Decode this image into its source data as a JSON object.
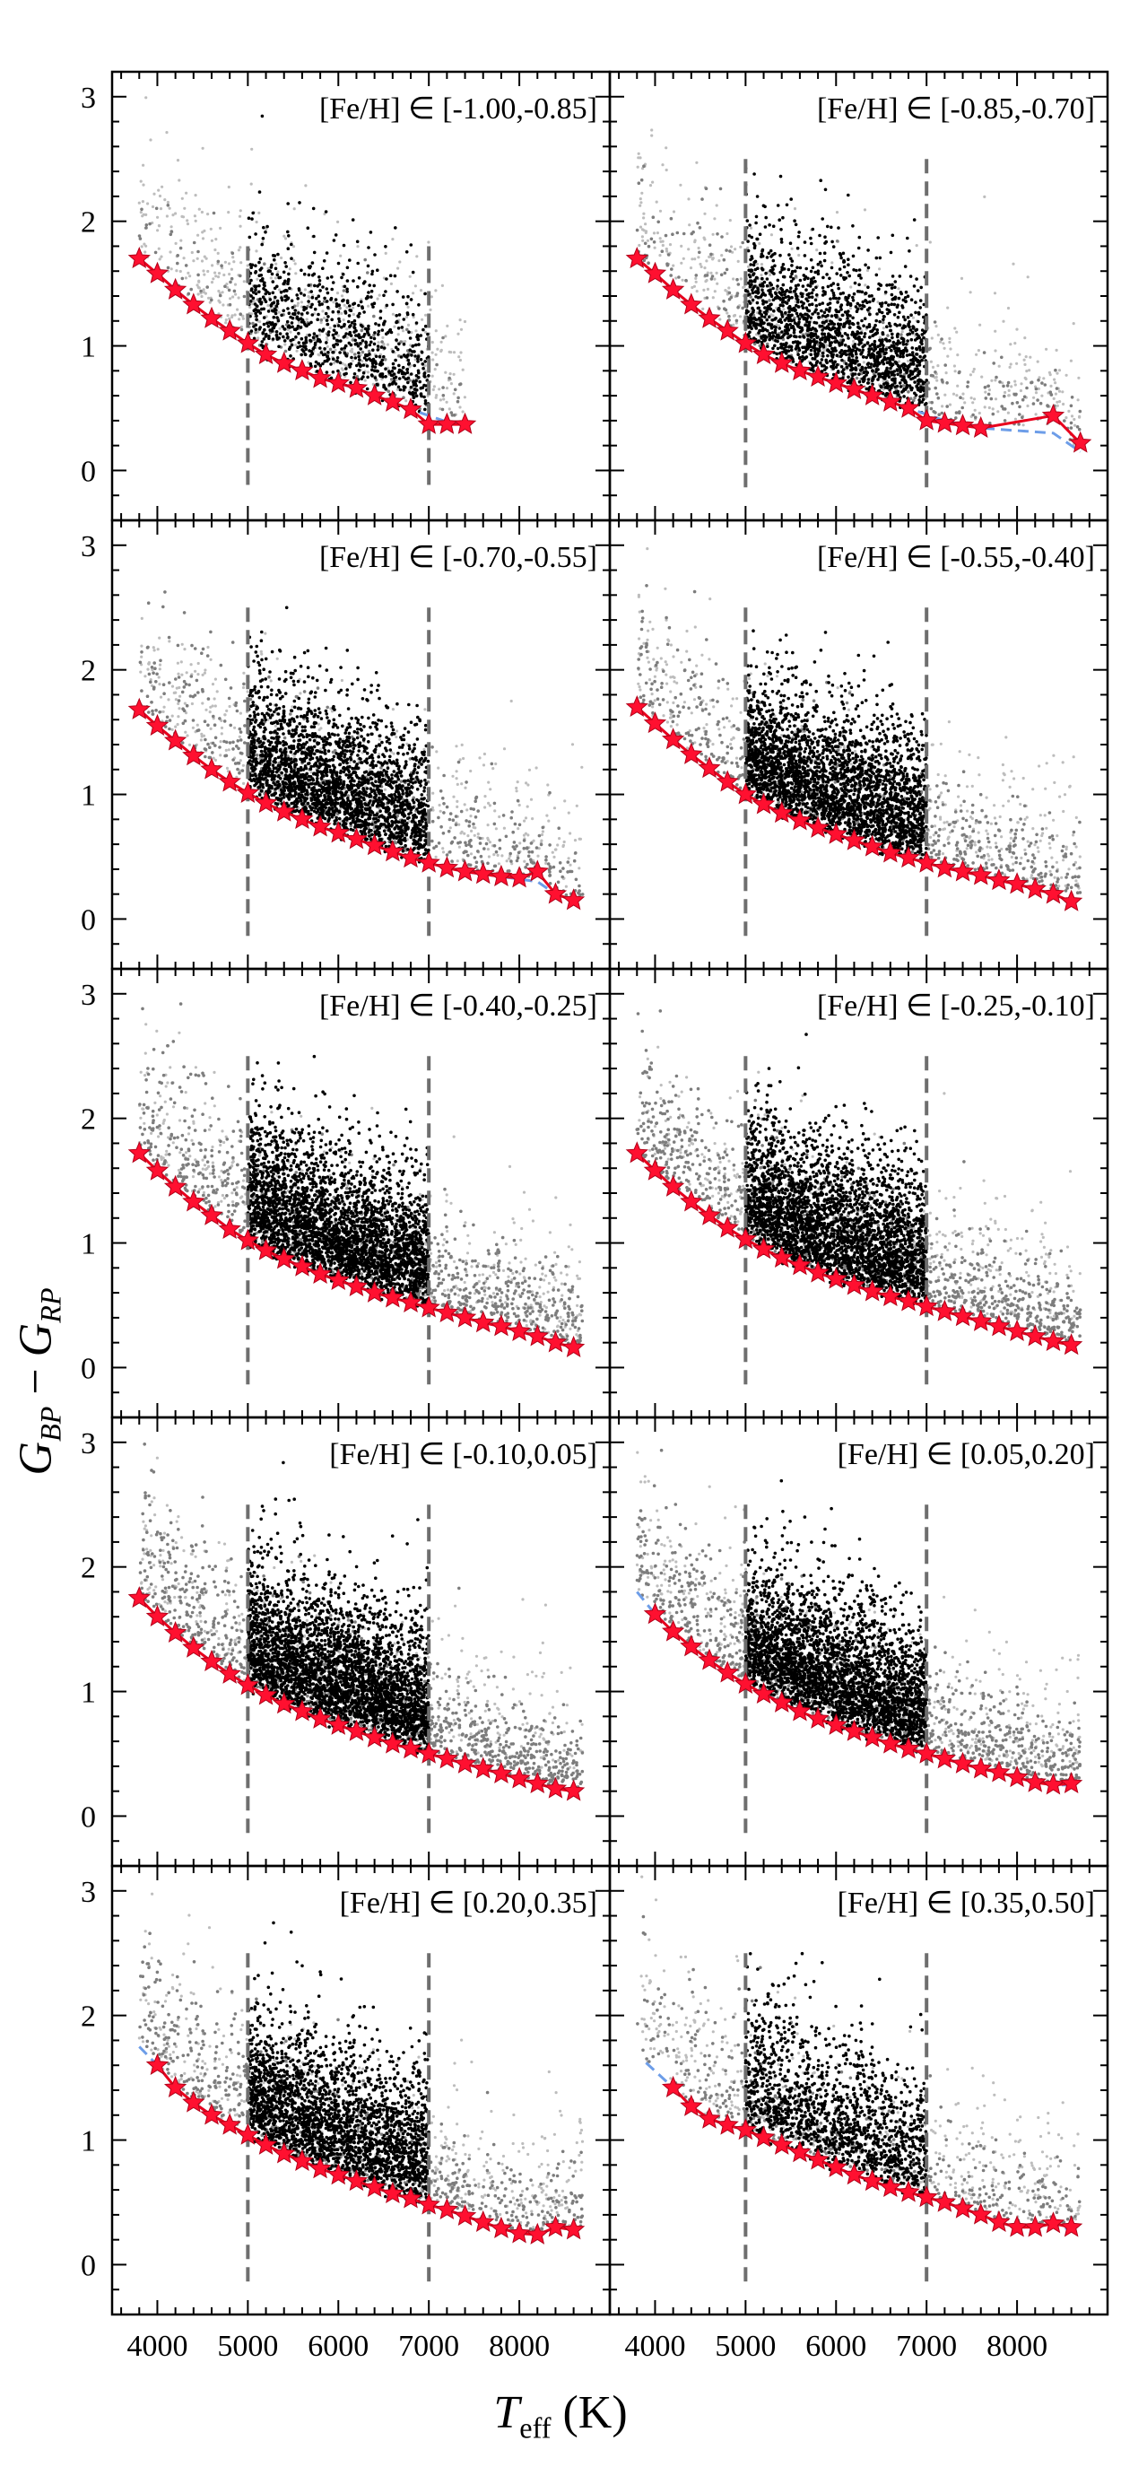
{
  "figure": {
    "ylabel_main": "G",
    "ylabel_sub1": "BP",
    "ylabel_minus": " − ",
    "ylabel_sub2": "RP",
    "xlabel_var": "T",
    "xlabel_sub": "eff",
    "xlabel_unit": " (K)"
  },
  "chart_data": [
    {
      "type": "scatter",
      "title": "[Fe/H] ∈ [-1.00,-0.85]",
      "xlim": [
        3500,
        9000
      ],
      "ylim": [
        -0.4,
        3.2
      ],
      "xticks": [
        4000,
        5000,
        6000,
        7000,
        8000
      ],
      "yticks": [
        0,
        1,
        2,
        3
      ],
      "cut_lines": [
        5000,
        7000
      ],
      "cut_line_ymax": 1.8,
      "density": {
        "black": 0.9,
        "gray": 0.2
      },
      "gray_xmax": 7400,
      "fit_x": [
        3800,
        4000,
        4200,
        4400,
        4600,
        4800,
        5000,
        5200,
        5400,
        5600,
        5800,
        6000,
        6200,
        6400,
        6600,
        6800,
        7000,
        7200,
        7400
      ],
      "fit_y": [
        1.7,
        1.58,
        1.45,
        1.33,
        1.22,
        1.12,
        1.02,
        0.93,
        0.86,
        0.8,
        0.74,
        0.7,
        0.66,
        0.6,
        0.55,
        0.49,
        0.44,
        0.39,
        0.37
      ],
      "stars_x": [
        3800,
        4000,
        4200,
        4400,
        4600,
        4800,
        5000,
        5200,
        5400,
        5600,
        5800,
        6000,
        6200,
        6400,
        6600,
        6800,
        7000,
        7200,
        7400
      ],
      "stars_y": [
        1.7,
        1.58,
        1.45,
        1.33,
        1.22,
        1.12,
        1.02,
        0.93,
        0.86,
        0.8,
        0.74,
        0.7,
        0.66,
        0.6,
        0.55,
        0.49,
        0.37,
        0.37,
        0.37
      ]
    },
    {
      "type": "scatter",
      "title": "[Fe/H] ∈ [-0.85,-0.70]",
      "xlim": [
        3500,
        9000
      ],
      "ylim": [
        -0.4,
        3.2
      ],
      "xticks": [
        4000,
        5000,
        6000,
        7000,
        8000
      ],
      "yticks": [
        0,
        1,
        2,
        3
      ],
      "cut_lines": [
        5000,
        7000
      ],
      "cut_line_ymax": 2.5,
      "density": {
        "black": 1.8,
        "gray": 0.4
      },
      "gray_xmax": 8700,
      "fit_x": [
        3800,
        4000,
        4200,
        4400,
        4600,
        4800,
        5000,
        5200,
        5400,
        5600,
        5800,
        6000,
        6200,
        6400,
        6600,
        6800,
        7000,
        7200,
        7400,
        7600,
        8400,
        8700
      ],
      "fit_y": [
        1.7,
        1.58,
        1.45,
        1.33,
        1.22,
        1.12,
        1.02,
        0.93,
        0.86,
        0.8,
        0.75,
        0.7,
        0.65,
        0.6,
        0.55,
        0.5,
        0.45,
        0.4,
        0.37,
        0.34,
        0.3,
        0.15
      ],
      "stars_x": [
        3800,
        4000,
        4200,
        4400,
        4600,
        4800,
        5000,
        5200,
        5400,
        5600,
        5800,
        6000,
        6200,
        6400,
        6600,
        6800,
        7000,
        7200,
        7400,
        7600,
        8400,
        8700
      ],
      "stars_y": [
        1.7,
        1.58,
        1.45,
        1.33,
        1.22,
        1.12,
        1.02,
        0.93,
        0.86,
        0.8,
        0.75,
        0.7,
        0.65,
        0.6,
        0.55,
        0.5,
        0.4,
        0.38,
        0.36,
        0.34,
        0.44,
        0.22
      ]
    },
    {
      "type": "scatter",
      "title": "[Fe/H] ∈ [-0.70,-0.55]",
      "xlim": [
        3500,
        9000
      ],
      "ylim": [
        -0.4,
        3.2
      ],
      "xticks": [
        4000,
        5000,
        6000,
        7000,
        8000
      ],
      "yticks": [
        0,
        1,
        2,
        3
      ],
      "cut_lines": [
        5000,
        7000
      ],
      "cut_line_ymax": 2.5,
      "density": {
        "black": 2.6,
        "gray": 0.7
      },
      "gray_xmax": 8700,
      "fit_x": [
        3800,
        4000,
        4200,
        4400,
        4600,
        4800,
        5000,
        5200,
        5400,
        5600,
        5800,
        6000,
        6200,
        6400,
        6600,
        6800,
        7000,
        7200,
        7400,
        7600,
        7800,
        8000,
        8200,
        8400,
        8600
      ],
      "fit_y": [
        1.68,
        1.55,
        1.43,
        1.31,
        1.2,
        1.1,
        1.01,
        0.93,
        0.86,
        0.8,
        0.74,
        0.69,
        0.64,
        0.59,
        0.54,
        0.49,
        0.45,
        0.41,
        0.38,
        0.36,
        0.34,
        0.32,
        0.3,
        0.2,
        0.15
      ],
      "stars_x": [
        3800,
        4000,
        4200,
        4400,
        4600,
        4800,
        5000,
        5200,
        5400,
        5600,
        5800,
        6000,
        6200,
        6400,
        6600,
        6800,
        7000,
        7200,
        7400,
        7600,
        7800,
        8000,
        8200,
        8400,
        8600
      ],
      "stars_y": [
        1.68,
        1.55,
        1.43,
        1.31,
        1.2,
        1.1,
        1.01,
        0.93,
        0.86,
        0.8,
        0.74,
        0.69,
        0.64,
        0.59,
        0.54,
        0.49,
        0.45,
        0.41,
        0.38,
        0.36,
        0.34,
        0.33,
        0.38,
        0.2,
        0.15
      ]
    },
    {
      "type": "scatter",
      "title": "[Fe/H] ∈ [-0.55,-0.40]",
      "xlim": [
        3500,
        9000
      ],
      "ylim": [
        -0.4,
        3.2
      ],
      "xticks": [
        4000,
        5000,
        6000,
        7000,
        8000
      ],
      "yticks": [
        0,
        1,
        2,
        3
      ],
      "cut_lines": [
        5000,
        7000
      ],
      "cut_line_ymax": 2.5,
      "density": {
        "black": 3.0,
        "gray": 0.9
      },
      "gray_xmax": 8700,
      "fit_x": [
        3800,
        4000,
        4200,
        4400,
        4600,
        4800,
        5000,
        5200,
        5400,
        5600,
        5800,
        6000,
        6200,
        6400,
        6600,
        6800,
        7000,
        7200,
        7400,
        7600,
        7800,
        8000,
        8200,
        8400,
        8600
      ],
      "fit_y": [
        1.7,
        1.57,
        1.44,
        1.32,
        1.21,
        1.1,
        1.0,
        0.92,
        0.85,
        0.79,
        0.73,
        0.68,
        0.63,
        0.58,
        0.53,
        0.49,
        0.45,
        0.41,
        0.38,
        0.35,
        0.31,
        0.28,
        0.24,
        0.2,
        0.14
      ],
      "stars_x": [
        3800,
        4000,
        4200,
        4400,
        4600,
        4800,
        5000,
        5200,
        5400,
        5600,
        5800,
        6000,
        6200,
        6400,
        6600,
        6800,
        7000,
        7200,
        7400,
        7600,
        7800,
        8000,
        8200,
        8400,
        8600
      ],
      "stars_y": [
        1.7,
        1.57,
        1.44,
        1.32,
        1.21,
        1.1,
        1.0,
        0.92,
        0.85,
        0.79,
        0.73,
        0.68,
        0.63,
        0.58,
        0.53,
        0.49,
        0.45,
        0.41,
        0.38,
        0.35,
        0.31,
        0.28,
        0.24,
        0.2,
        0.14
      ]
    },
    {
      "type": "scatter",
      "title": "[Fe/H] ∈ [-0.40,-0.25]",
      "xlim": [
        3500,
        9000
      ],
      "ylim": [
        -0.4,
        3.2
      ],
      "xticks": [
        4000,
        5000,
        6000,
        7000,
        8000
      ],
      "yticks": [
        0,
        1,
        2,
        3
      ],
      "cut_lines": [
        5000,
        7000
      ],
      "cut_line_ymax": 2.5,
      "density": {
        "black": 3.4,
        "gray": 1.4
      },
      "gray_xmax": 8700,
      "fit_x": [
        3800,
        4000,
        4200,
        4400,
        4600,
        4800,
        5000,
        5200,
        5400,
        5600,
        5800,
        6000,
        6200,
        6400,
        6600,
        6800,
        7000,
        7200,
        7400,
        7600,
        7800,
        8000,
        8200,
        8400,
        8600
      ],
      "fit_y": [
        1.72,
        1.58,
        1.45,
        1.33,
        1.22,
        1.11,
        1.02,
        0.94,
        0.87,
        0.81,
        0.75,
        0.7,
        0.65,
        0.6,
        0.56,
        0.52,
        0.48,
        0.44,
        0.4,
        0.36,
        0.33,
        0.29,
        0.25,
        0.2,
        0.16
      ],
      "stars_x": [
        3800,
        4000,
        4200,
        4400,
        4600,
        4800,
        5000,
        5200,
        5400,
        5600,
        5800,
        6000,
        6200,
        6400,
        6600,
        6800,
        7000,
        7200,
        7400,
        7600,
        7800,
        8000,
        8200,
        8400,
        8600
      ],
      "stars_y": [
        1.72,
        1.58,
        1.45,
        1.33,
        1.22,
        1.11,
        1.02,
        0.94,
        0.87,
        0.81,
        0.75,
        0.7,
        0.65,
        0.6,
        0.56,
        0.52,
        0.48,
        0.44,
        0.4,
        0.36,
        0.33,
        0.29,
        0.25,
        0.2,
        0.16
      ]
    },
    {
      "type": "scatter",
      "title": "[Fe/H] ∈ [-0.25,-0.10]",
      "xlim": [
        3500,
        9000
      ],
      "ylim": [
        -0.4,
        3.2
      ],
      "xticks": [
        4000,
        5000,
        6000,
        7000,
        8000
      ],
      "yticks": [
        0,
        1,
        2,
        3
      ],
      "cut_lines": [
        5000,
        7000
      ],
      "cut_line_ymax": 2.5,
      "density": {
        "black": 3.4,
        "gray": 1.5
      },
      "gray_xmax": 8700,
      "fit_x": [
        3800,
        4000,
        4200,
        4400,
        4600,
        4800,
        5000,
        5200,
        5400,
        5600,
        5800,
        6000,
        6200,
        6400,
        6600,
        6800,
        7000,
        7200,
        7400,
        7600,
        7800,
        8000,
        8200,
        8400,
        8600
      ],
      "fit_y": [
        1.72,
        1.58,
        1.45,
        1.33,
        1.22,
        1.12,
        1.03,
        0.95,
        0.88,
        0.82,
        0.76,
        0.71,
        0.66,
        0.61,
        0.57,
        0.53,
        0.49,
        0.45,
        0.41,
        0.37,
        0.33,
        0.29,
        0.25,
        0.21,
        0.18
      ],
      "stars_x": [
        3800,
        4000,
        4200,
        4400,
        4600,
        4800,
        5000,
        5200,
        5400,
        5600,
        5800,
        6000,
        6200,
        6400,
        6600,
        6800,
        7000,
        7200,
        7400,
        7600,
        7800,
        8000,
        8200,
        8400,
        8600
      ],
      "stars_y": [
        1.72,
        1.58,
        1.45,
        1.33,
        1.22,
        1.12,
        1.03,
        0.95,
        0.88,
        0.82,
        0.76,
        0.71,
        0.66,
        0.61,
        0.57,
        0.53,
        0.49,
        0.45,
        0.41,
        0.37,
        0.33,
        0.29,
        0.25,
        0.21,
        0.18
      ]
    },
    {
      "type": "scatter",
      "title": "[Fe/H] ∈ [-0.10,0.05]",
      "xlim": [
        3500,
        9000
      ],
      "ylim": [
        -0.4,
        3.2
      ],
      "xticks": [
        4000,
        5000,
        6000,
        7000,
        8000
      ],
      "yticks": [
        0,
        1,
        2,
        3
      ],
      "cut_lines": [
        5000,
        7000
      ],
      "cut_line_ymax": 2.5,
      "density": {
        "black": 3.6,
        "gray": 1.6
      },
      "gray_xmax": 8700,
      "fit_x": [
        3800,
        4000,
        4200,
        4400,
        4600,
        4800,
        5000,
        5200,
        5400,
        5600,
        5800,
        6000,
        6200,
        6400,
        6600,
        6800,
        7000,
        7200,
        7400,
        7600,
        7800,
        8000,
        8200,
        8400,
        8600
      ],
      "fit_y": [
        1.75,
        1.6,
        1.47,
        1.35,
        1.24,
        1.14,
        1.05,
        0.97,
        0.9,
        0.84,
        0.78,
        0.73,
        0.68,
        0.63,
        0.58,
        0.54,
        0.5,
        0.46,
        0.42,
        0.38,
        0.34,
        0.3,
        0.26,
        0.22,
        0.2
      ],
      "stars_x": [
        3800,
        4000,
        4200,
        4400,
        4600,
        4800,
        5000,
        5200,
        5400,
        5600,
        5800,
        6000,
        6200,
        6400,
        6600,
        6800,
        7000,
        7200,
        7400,
        7600,
        7800,
        8000,
        8200,
        8400,
        8600
      ],
      "stars_y": [
        1.75,
        1.6,
        1.47,
        1.35,
        1.24,
        1.14,
        1.05,
        0.97,
        0.9,
        0.84,
        0.78,
        0.73,
        0.68,
        0.63,
        0.58,
        0.54,
        0.5,
        0.46,
        0.42,
        0.38,
        0.34,
        0.3,
        0.26,
        0.22,
        0.2
      ]
    },
    {
      "type": "scatter",
      "title": "[Fe/H] ∈ [0.05,0.20]",
      "xlim": [
        3500,
        9000
      ],
      "ylim": [
        -0.4,
        3.2
      ],
      "xticks": [
        4000,
        5000,
        6000,
        7000,
        8000
      ],
      "yticks": [
        0,
        1,
        2,
        3
      ],
      "cut_lines": [
        5000,
        7000
      ],
      "cut_line_ymax": 2.5,
      "density": {
        "black": 3.4,
        "gray": 1.4
      },
      "gray_xmax": 8700,
      "fit_x": [
        3800,
        4000,
        4200,
        4400,
        4600,
        4800,
        5000,
        5200,
        5400,
        5600,
        5800,
        6000,
        6200,
        6400,
        6600,
        6800,
        7000,
        7200,
        7400,
        7600,
        7800,
        8000,
        8200,
        8400,
        8600
      ],
      "fit_y": [
        1.8,
        1.62,
        1.48,
        1.36,
        1.25,
        1.15,
        1.06,
        0.98,
        0.91,
        0.84,
        0.78,
        0.73,
        0.68,
        0.63,
        0.58,
        0.54,
        0.5,
        0.46,
        0.42,
        0.38,
        0.35,
        0.31,
        0.27,
        0.25,
        0.25
      ],
      "stars_x": [
        4000,
        4200,
        4400,
        4600,
        4800,
        5000,
        5200,
        5400,
        5600,
        5800,
        6000,
        6200,
        6400,
        6600,
        6800,
        7000,
        7200,
        7400,
        7600,
        7800,
        8000,
        8200,
        8400,
        8600
      ],
      "stars_y": [
        1.62,
        1.48,
        1.36,
        1.25,
        1.15,
        1.06,
        0.98,
        0.91,
        0.84,
        0.78,
        0.73,
        0.68,
        0.63,
        0.58,
        0.54,
        0.5,
        0.46,
        0.42,
        0.38,
        0.35,
        0.31,
        0.27,
        0.25,
        0.26
      ]
    },
    {
      "type": "scatter",
      "title": "[Fe/H] ∈ [0.20,0.35]",
      "xlim": [
        3500,
        9000
      ],
      "ylim": [
        -0.4,
        3.2
      ],
      "xticks": [
        4000,
        5000,
        6000,
        7000,
        8000
      ],
      "yticks": [
        0,
        1,
        2,
        3
      ],
      "cut_lines": [
        5000,
        7000
      ],
      "cut_line_ymax": 2.5,
      "density": {
        "black": 2.8,
        "gray": 1.0
      },
      "gray_xmax": 8700,
      "fit_x": [
        3800,
        4000,
        4200,
        4400,
        4600,
        4800,
        5000,
        5200,
        5400,
        5600,
        5800,
        6000,
        6200,
        6400,
        6600,
        6800,
        7000,
        7200,
        7400,
        7600,
        7800,
        8000,
        8200,
        8400,
        8600
      ],
      "fit_y": [
        1.75,
        1.6,
        1.42,
        1.3,
        1.2,
        1.12,
        1.04,
        0.96,
        0.89,
        0.83,
        0.77,
        0.72,
        0.67,
        0.62,
        0.57,
        0.53,
        0.48,
        0.44,
        0.39,
        0.34,
        0.29,
        0.25,
        0.24,
        0.3,
        0.28
      ],
      "stars_x": [
        4000,
        4200,
        4400,
        4600,
        4800,
        5000,
        5200,
        5400,
        5600,
        5800,
        6000,
        6200,
        6400,
        6600,
        6800,
        7000,
        7200,
        7400,
        7600,
        7800,
        8000,
        8200,
        8400,
        8600
      ],
      "stars_y": [
        1.6,
        1.42,
        1.3,
        1.2,
        1.12,
        1.04,
        0.96,
        0.89,
        0.83,
        0.77,
        0.72,
        0.67,
        0.62,
        0.57,
        0.53,
        0.48,
        0.44,
        0.39,
        0.34,
        0.29,
        0.25,
        0.24,
        0.3,
        0.28
      ]
    },
    {
      "type": "scatter",
      "title": "[Fe/H] ∈ [0.35,0.50]",
      "xlim": [
        3500,
        9000
      ],
      "ylim": [
        -0.4,
        3.2
      ],
      "xticks": [
        4000,
        5000,
        6000,
        7000,
        8000
      ],
      "yticks": [
        0,
        1,
        2,
        3
      ],
      "cut_lines": [
        5000,
        7000
      ],
      "cut_line_ymax": 2.5,
      "density": {
        "black": 1.6,
        "gray": 0.6
      },
      "gray_xmax": 8700,
      "fit_x": [
        3900,
        4200,
        4400,
        4600,
        4800,
        5000,
        5200,
        5400,
        5600,
        5800,
        6000,
        6200,
        6400,
        6600,
        6800,
        7000,
        7200,
        7400,
        7600,
        7800,
        8000,
        8200,
        8400,
        8600
      ],
      "fit_y": [
        1.62,
        1.42,
        1.27,
        1.17,
        1.12,
        1.08,
        1.02,
        0.96,
        0.9,
        0.84,
        0.78,
        0.72,
        0.67,
        0.62,
        0.58,
        0.54,
        0.5,
        0.45,
        0.4,
        0.34,
        0.3,
        0.3,
        0.32,
        0.28
      ],
      "stars_x": [
        4200,
        4400,
        4600,
        4800,
        5000,
        5200,
        5400,
        5600,
        5800,
        6000,
        6200,
        6400,
        6600,
        6800,
        7000,
        7200,
        7400,
        7600,
        7800,
        8000,
        8200,
        8400,
        8600
      ],
      "stars_y": [
        1.42,
        1.27,
        1.17,
        1.12,
        1.08,
        1.02,
        0.96,
        0.9,
        0.84,
        0.78,
        0.72,
        0.67,
        0.62,
        0.58,
        0.54,
        0.5,
        0.45,
        0.4,
        0.34,
        0.3,
        0.3,
        0.33,
        0.3
      ]
    }
  ]
}
